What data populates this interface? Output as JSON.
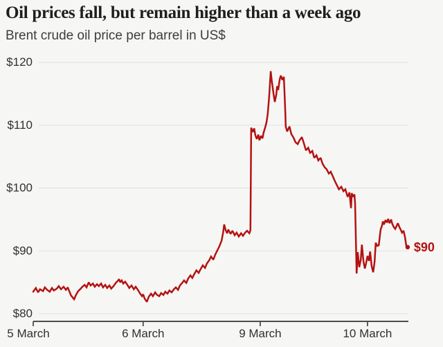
{
  "header": {
    "title": "Oil prices fall, but remain higher than a week ago",
    "subtitle": "Brent crude oil price per barrel in US$"
  },
  "chart_data": {
    "type": "line",
    "title": "Oil prices fall, but remain higher than a week ago",
    "subtitle": "Brent crude oil price per barrel in US$",
    "xlabel": "",
    "ylabel": "Brent crude oil price per barrel in US$",
    "ylim": [
      80,
      120
    ],
    "grid": "horizontal",
    "legend": "none",
    "colors": {
      "line": "#b31212",
      "end_label": "#b31212",
      "background": "#f6f6f4",
      "gridline": "#e3e3e1",
      "axis": "#4d4d4d",
      "tick_text": "#303030",
      "title_text": "#1e1e1c",
      "subtitle_text": "#3d3d3d"
    },
    "y_ticks": [
      {
        "label": "$80",
        "value": 80
      },
      {
        "label": "$90",
        "value": 90
      },
      {
        "label": "$100",
        "value": 100
      },
      {
        "label": "$110",
        "value": 110
      },
      {
        "label": "$120",
        "value": 120
      }
    ],
    "x_ticks": [
      {
        "label": "5 March",
        "t": 0.0
      },
      {
        "label": "6 March",
        "t": 0.293
      },
      {
        "label": "9 March",
        "t": 0.605
      },
      {
        "label": "10 March",
        "t": 0.891
      }
    ],
    "end_label": {
      "text": "$90",
      "value": 90.6
    },
    "series": [
      {
        "name": "Brent crude oil price (US$ per barrel)",
        "x_format": "normalized time position 0-1 across axis (5-10 March, intraday)",
        "points": [
          [
            0.0,
            83.5
          ],
          [
            0.007,
            84.1
          ],
          [
            0.013,
            83.4
          ],
          [
            0.018,
            83.9
          ],
          [
            0.026,
            83.6
          ],
          [
            0.031,
            84.2
          ],
          [
            0.037,
            83.8
          ],
          [
            0.044,
            83.5
          ],
          [
            0.05,
            84.1
          ],
          [
            0.055,
            83.7
          ],
          [
            0.063,
            84.0
          ],
          [
            0.068,
            84.4
          ],
          [
            0.074,
            83.9
          ],
          [
            0.081,
            84.3
          ],
          [
            0.087,
            83.8
          ],
          [
            0.092,
            84.2
          ],
          [
            0.096,
            83.6
          ],
          [
            0.101,
            82.9
          ],
          [
            0.109,
            82.3
          ],
          [
            0.114,
            83.0
          ],
          [
            0.12,
            83.6
          ],
          [
            0.125,
            83.9
          ],
          [
            0.131,
            84.3
          ],
          [
            0.137,
            84.6
          ],
          [
            0.142,
            84.2
          ],
          [
            0.148,
            85.0
          ],
          [
            0.153,
            84.5
          ],
          [
            0.159,
            84.8
          ],
          [
            0.164,
            84.3
          ],
          [
            0.17,
            84.7
          ],
          [
            0.175,
            84.4
          ],
          [
            0.181,
            84.8
          ],
          [
            0.186,
            84.2
          ],
          [
            0.192,
            84.6
          ],
          [
            0.197,
            84.1
          ],
          [
            0.203,
            84.5
          ],
          [
            0.208,
            84.0
          ],
          [
            0.214,
            84.4
          ],
          [
            0.22,
            84.9
          ],
          [
            0.225,
            85.2
          ],
          [
            0.229,
            85.5
          ],
          [
            0.232,
            85.0
          ],
          [
            0.236,
            85.3
          ],
          [
            0.24,
            84.8
          ],
          [
            0.245,
            85.1
          ],
          [
            0.251,
            84.6
          ],
          [
            0.256,
            84.1
          ],
          [
            0.262,
            84.5
          ],
          [
            0.268,
            83.9
          ],
          [
            0.273,
            84.3
          ],
          [
            0.279,
            83.8
          ],
          [
            0.284,
            83.3
          ],
          [
            0.29,
            82.8
          ],
          [
            0.293,
            83.1
          ],
          [
            0.297,
            82.4
          ],
          [
            0.303,
            81.9
          ],
          [
            0.308,
            82.7
          ],
          [
            0.314,
            83.2
          ],
          [
            0.319,
            82.8
          ],
          [
            0.325,
            83.4
          ],
          [
            0.33,
            83.0
          ],
          [
            0.336,
            82.8
          ],
          [
            0.341,
            83.3
          ],
          [
            0.347,
            83.0
          ],
          [
            0.352,
            83.5
          ],
          [
            0.358,
            83.2
          ],
          [
            0.363,
            83.7
          ],
          [
            0.369,
            83.4
          ],
          [
            0.375,
            83.9
          ],
          [
            0.38,
            84.2
          ],
          [
            0.386,
            83.8
          ],
          [
            0.391,
            84.5
          ],
          [
            0.397,
            84.9
          ],
          [
            0.402,
            85.3
          ],
          [
            0.408,
            84.9
          ],
          [
            0.413,
            85.6
          ],
          [
            0.419,
            86.1
          ],
          [
            0.424,
            85.7
          ],
          [
            0.43,
            86.4
          ],
          [
            0.435,
            86.9
          ],
          [
            0.441,
            86.5
          ],
          [
            0.447,
            87.2
          ],
          [
            0.452,
            87.7
          ],
          [
            0.458,
            87.3
          ],
          [
            0.463,
            88.0
          ],
          [
            0.469,
            88.5
          ],
          [
            0.474,
            89.1
          ],
          [
            0.48,
            88.6
          ],
          [
            0.485,
            89.4
          ],
          [
            0.491,
            90.1
          ],
          [
            0.496,
            90.7
          ],
          [
            0.502,
            91.6
          ],
          [
            0.506,
            92.9
          ],
          [
            0.509,
            94.2
          ],
          [
            0.513,
            93.3
          ],
          [
            0.517,
            92.8
          ],
          [
            0.52,
            93.4
          ],
          [
            0.526,
            92.7
          ],
          [
            0.531,
            93.2
          ],
          [
            0.537,
            92.5
          ],
          [
            0.542,
            92.9
          ],
          [
            0.548,
            92.3
          ],
          [
            0.554,
            92.8
          ],
          [
            0.559,
            92.4
          ],
          [
            0.565,
            92.9
          ],
          [
            0.57,
            93.2
          ],
          [
            0.576,
            92.8
          ],
          [
            0.579,
            93.3
          ],
          [
            0.581,
            109.6
          ],
          [
            0.585,
            108.9
          ],
          [
            0.589,
            109.5
          ],
          [
            0.592,
            108.4
          ],
          [
            0.596,
            107.8
          ],
          [
            0.6,
            108.5
          ],
          [
            0.603,
            107.6
          ],
          [
            0.607,
            108.3
          ],
          [
            0.611,
            107.9
          ],
          [
            0.614,
            108.8
          ],
          [
            0.618,
            109.6
          ],
          [
            0.622,
            110.5
          ],
          [
            0.625,
            111.8
          ],
          [
            0.629,
            114.6
          ],
          [
            0.633,
            118.6
          ],
          [
            0.636,
            117.0
          ],
          [
            0.64,
            115.2
          ],
          [
            0.644,
            113.7
          ],
          [
            0.648,
            114.9
          ],
          [
            0.65,
            116.2
          ],
          [
            0.653,
            115.6
          ],
          [
            0.657,
            117.3
          ],
          [
            0.66,
            117.9
          ],
          [
            0.664,
            117.2
          ],
          [
            0.668,
            117.7
          ],
          [
            0.67,
            115.0
          ],
          [
            0.672,
            112.0
          ],
          [
            0.673,
            109.8
          ],
          [
            0.677,
            109.0
          ],
          [
            0.683,
            109.8
          ],
          [
            0.688,
            108.6
          ],
          [
            0.694,
            108.0
          ],
          [
            0.699,
            107.3
          ],
          [
            0.705,
            107.0
          ],
          [
            0.71,
            107.6
          ],
          [
            0.716,
            108.1
          ],
          [
            0.721,
            107.2
          ],
          [
            0.727,
            106.0
          ],
          [
            0.733,
            106.4
          ],
          [
            0.738,
            105.6
          ],
          [
            0.744,
            105.9
          ],
          [
            0.749,
            104.8
          ],
          [
            0.755,
            105.2
          ],
          [
            0.76,
            104.4
          ],
          [
            0.766,
            104.8
          ],
          [
            0.771,
            103.9
          ],
          [
            0.777,
            103.3
          ],
          [
            0.782,
            103.0
          ],
          [
            0.788,
            102.3
          ],
          [
            0.793,
            102.6
          ],
          [
            0.799,
            101.8
          ],
          [
            0.804,
            101.1
          ],
          [
            0.81,
            100.4
          ],
          [
            0.815,
            99.8
          ],
          [
            0.821,
            100.2
          ],
          [
            0.827,
            99.5
          ],
          [
            0.832,
            99.8
          ],
          [
            0.838,
            98.6
          ],
          [
            0.843,
            99.3
          ],
          [
            0.847,
            96.8
          ],
          [
            0.849,
            99.2
          ],
          [
            0.852,
            98.6
          ],
          [
            0.856,
            99.0
          ],
          [
            0.858,
            97.6
          ],
          [
            0.86,
            92.0
          ],
          [
            0.862,
            86.4
          ],
          [
            0.865,
            89.8
          ],
          [
            0.869,
            87.4
          ],
          [
            0.873,
            88.6
          ],
          [
            0.876,
            91.0
          ],
          [
            0.88,
            88.4
          ],
          [
            0.884,
            87.2
          ],
          [
            0.887,
            88.0
          ],
          [
            0.891,
            89.2
          ],
          [
            0.895,
            88.4
          ],
          [
            0.898,
            89.9
          ],
          [
            0.902,
            87.6
          ],
          [
            0.906,
            86.6
          ],
          [
            0.91,
            88.3
          ],
          [
            0.913,
            91.3
          ],
          [
            0.917,
            90.8
          ],
          [
            0.921,
            90.9
          ],
          [
            0.926,
            93.4
          ],
          [
            0.93,
            94.1
          ],
          [
            0.932,
            94.7
          ],
          [
            0.935,
            94.2
          ],
          [
            0.939,
            94.9
          ],
          [
            0.943,
            94.5
          ],
          [
            0.946,
            95.1
          ],
          [
            0.95,
            94.4
          ],
          [
            0.954,
            95.0
          ],
          [
            0.957,
            94.3
          ],
          [
            0.961,
            93.8
          ],
          [
            0.965,
            93.5
          ],
          [
            0.969,
            94.0
          ],
          [
            0.972,
            94.4
          ],
          [
            0.976,
            93.8
          ],
          [
            0.98,
            93.3
          ],
          [
            0.983,
            92.9
          ],
          [
            0.987,
            93.2
          ],
          [
            0.991,
            92.2
          ],
          [
            0.994,
            91.0
          ],
          [
            0.996,
            90.5
          ],
          [
            0.998,
            90.6
          ]
        ]
      }
    ]
  }
}
